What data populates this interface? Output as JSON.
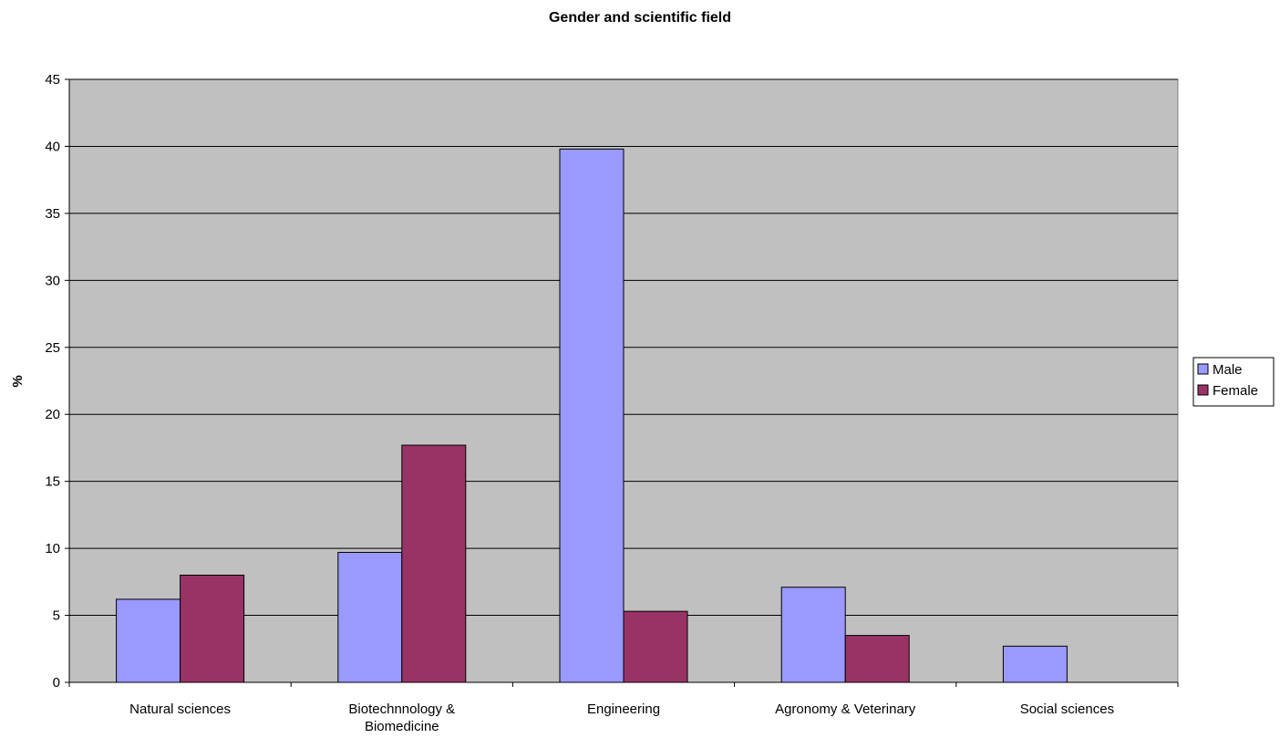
{
  "chart_data": {
    "type": "bar",
    "title": "Gender and scientific field",
    "xlabel": "",
    "ylabel": "%",
    "ylim": [
      0,
      45
    ],
    "yticks": [
      0,
      5,
      10,
      15,
      20,
      25,
      30,
      35,
      40,
      45
    ],
    "categories": [
      [
        "Natural sciences"
      ],
      [
        "Biotechnnology &",
        "Biomedicine"
      ],
      [
        "Engineering"
      ],
      [
        "Agronomy & Veterinary"
      ],
      [
        "Social sciences"
      ]
    ],
    "series": [
      {
        "name": "Male",
        "color": "#9999ff",
        "values": [
          6.2,
          9.7,
          39.8,
          7.1,
          2.7
        ]
      },
      {
        "name": "Female",
        "color": "#993366",
        "values": [
          8.0,
          17.7,
          5.3,
          3.5,
          0
        ]
      }
    ],
    "grid": true,
    "plot_background": "#c0c0c0",
    "legend_position": "right"
  }
}
